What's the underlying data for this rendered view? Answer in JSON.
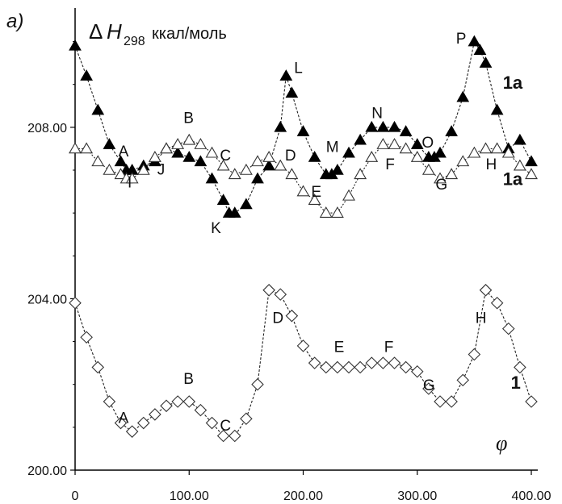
{
  "chart_data": {
    "type": "line",
    "panel_label": "a)",
    "ylabel": {
      "delta": "Δ",
      "symbol": "H",
      "subscript": "298",
      "unit": "ккал/моль"
    },
    "xlabel": "φ",
    "xlim": [
      0,
      400
    ],
    "ylim": [
      200,
      210.5
    ],
    "x_ticks": [
      "0",
      "100.00",
      "200.00",
      "300.00",
      "400.00"
    ],
    "x_tick_values": [
      0,
      100,
      200,
      300,
      400
    ],
    "y_ticks": [
      "200.00",
      "204.00",
      "208.00"
    ],
    "y_tick_values": [
      200,
      204,
      208
    ],
    "series": [
      {
        "name": "1a",
        "marker": "filled-triangle",
        "color": "#000000",
        "x": [
          0,
          10,
          20,
          30,
          40,
          45,
          50,
          60,
          70,
          80,
          90,
          100,
          110,
          120,
          130,
          135,
          140,
          150,
          160,
          170,
          180,
          185,
          190,
          200,
          210,
          220,
          225,
          230,
          240,
          250,
          260,
          270,
          280,
          290,
          300,
          310,
          315,
          320,
          330,
          340,
          350,
          355,
          360,
          370,
          380,
          390,
          400
        ],
        "y": [
          209.9,
          209.2,
          208.4,
          207.6,
          207.2,
          207.0,
          207.0,
          207.1,
          207.2,
          207.5,
          207.4,
          207.3,
          207.2,
          206.8,
          206.3,
          206.0,
          206.0,
          206.2,
          206.8,
          207.1,
          208.0,
          209.2,
          208.8,
          207.9,
          207.3,
          206.9,
          206.9,
          207.0,
          207.4,
          207.7,
          208.0,
          208.0,
          208.0,
          207.9,
          207.6,
          207.3,
          207.3,
          207.4,
          207.9,
          208.7,
          210.0,
          209.8,
          209.5,
          208.4,
          207.5,
          207.7,
          207.2
        ]
      },
      {
        "name": "1a",
        "marker": "open-triangle",
        "color": "#000000",
        "x": [
          0,
          10,
          20,
          30,
          40,
          45,
          50,
          60,
          70,
          80,
          90,
          100,
          110,
          120,
          130,
          140,
          150,
          160,
          170,
          180,
          190,
          200,
          210,
          220,
          230,
          240,
          250,
          260,
          270,
          280,
          290,
          300,
          310,
          320,
          330,
          340,
          350,
          360,
          370,
          380,
          390,
          400
        ],
        "y": [
          207.5,
          207.5,
          207.2,
          207.0,
          206.9,
          206.8,
          206.8,
          207.0,
          207.3,
          207.5,
          207.6,
          207.7,
          207.6,
          207.4,
          207.1,
          206.9,
          207.0,
          207.2,
          207.3,
          207.1,
          206.9,
          206.5,
          206.3,
          206.0,
          206.0,
          206.4,
          206.9,
          207.3,
          207.6,
          207.6,
          207.5,
          207.3,
          207.0,
          206.8,
          206.9,
          207.2,
          207.4,
          207.5,
          207.5,
          207.4,
          207.1,
          206.9
        ]
      },
      {
        "name": "1",
        "marker": "open-diamond",
        "color": "#000000",
        "x": [
          0,
          10,
          20,
          30,
          40,
          50,
          60,
          70,
          80,
          90,
          100,
          110,
          120,
          130,
          140,
          150,
          160,
          170,
          180,
          190,
          200,
          210,
          220,
          230,
          240,
          250,
          260,
          270,
          280,
          290,
          300,
          310,
          320,
          330,
          340,
          350,
          360,
          370,
          380,
          390,
          400
        ],
        "y": [
          203.9,
          203.1,
          202.4,
          201.6,
          201.1,
          200.9,
          201.1,
          201.3,
          201.5,
          201.6,
          201.6,
          201.4,
          201.1,
          200.8,
          200.8,
          201.2,
          202.0,
          204.2,
          204.1,
          203.6,
          202.9,
          202.5,
          202.4,
          202.4,
          202.4,
          202.4,
          202.5,
          202.5,
          202.5,
          202.4,
          202.3,
          201.9,
          201.6,
          201.6,
          202.1,
          202.7,
          204.2,
          203.9,
          203.3,
          202.4,
          201.6
        ]
      }
    ],
    "point_labels": [
      {
        "text": "A",
        "x": 38,
        "y": 207.32
      },
      {
        "text": "B",
        "x": 95,
        "y": 208.1
      },
      {
        "text": "C",
        "x": 127,
        "y": 207.23
      },
      {
        "text": "D",
        "x": 184,
        "y": 207.23
      },
      {
        "text": "E",
        "x": 207,
        "y": 206.38
      },
      {
        "text": "F",
        "x": 272,
        "y": 207.02
      },
      {
        "text": "G",
        "x": 316,
        "y": 206.55
      },
      {
        "text": "H",
        "x": 360,
        "y": 207.02
      },
      {
        "text": "I",
        "x": 46,
        "y": 206.6
      },
      {
        "text": "J",
        "x": 72,
        "y": 206.9
      },
      {
        "text": "K",
        "x": 119,
        "y": 205.53
      },
      {
        "text": "L",
        "x": 192,
        "y": 209.27
      },
      {
        "text": "M",
        "x": 220,
        "y": 207.42
      },
      {
        "text": "N",
        "x": 260,
        "y": 208.21
      },
      {
        "text": "O",
        "x": 304,
        "y": 207.53
      },
      {
        "text": "P",
        "x": 334,
        "y": 209.95
      },
      {
        "text": "A",
        "x": 38,
        "y": 201.1
      },
      {
        "text": "B",
        "x": 95,
        "y": 202.01
      },
      {
        "text": "C",
        "x": 127,
        "y": 200.92
      },
      {
        "text": "D",
        "x": 173,
        "y": 203.43
      },
      {
        "text": "E",
        "x": 227,
        "y": 202.76
      },
      {
        "text": "F",
        "x": 271,
        "y": 202.76
      },
      {
        "text": "G",
        "x": 305,
        "y": 201.86
      },
      {
        "text": "H",
        "x": 351,
        "y": 203.43
      }
    ],
    "series_labels": [
      {
        "text": "1a",
        "x": 375,
        "y": 208.9
      },
      {
        "text": "1a",
        "x": 375,
        "y": 206.65
      },
      {
        "text": "1",
        "x": 382,
        "y": 201.9
      }
    ]
  }
}
